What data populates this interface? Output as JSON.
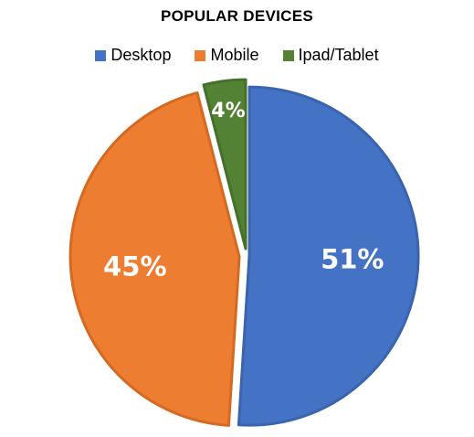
{
  "chart_data": {
    "type": "pie",
    "title": "POPULAR DEVICES",
    "legend_position": "top",
    "slices": [
      {
        "name": "Desktop",
        "value": 51,
        "label": "51%",
        "color": "#4472C4",
        "border": "#3A64AD"
      },
      {
        "name": "Mobile",
        "value": 45,
        "label": "45%",
        "color": "#ED7D31",
        "border": "#D46A22"
      },
      {
        "name": "Ipad/Tablet",
        "value": 4,
        "label": "4%",
        "color": "#548235",
        "border": "#44702A"
      }
    ]
  }
}
